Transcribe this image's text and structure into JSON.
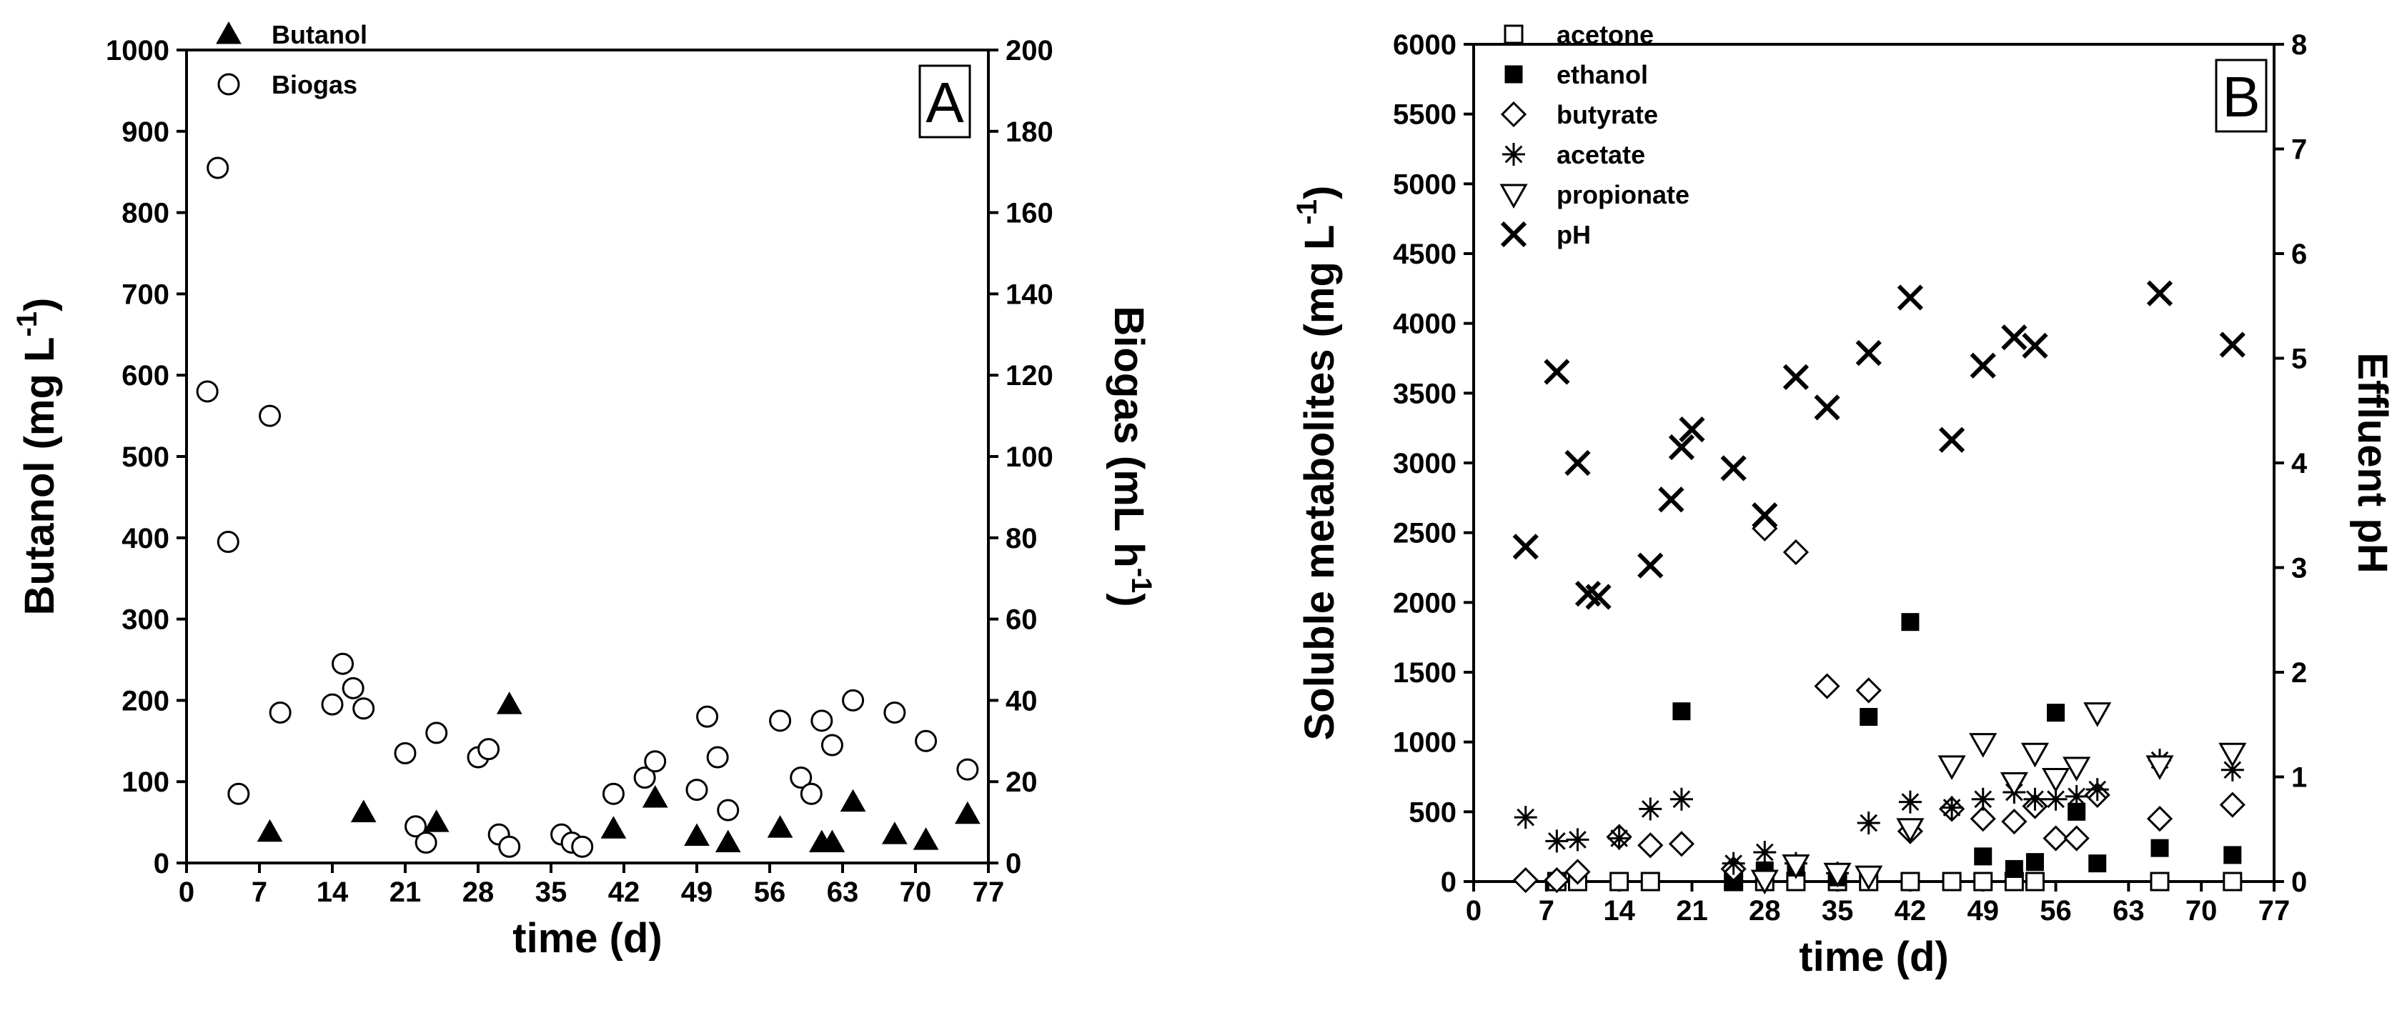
{
  "chart_data": [
    {
      "panel": "A",
      "type": "scatter",
      "xlabel": "time (d)",
      "ylabel": "Butanol (mg L-1)",
      "ylabel_text": "Butanol (mg L",
      "ylabel_sup": "-1",
      "ylabel_close": ")",
      "y2label": "Biogas (mL h-1)",
      "y2label_text": "Biogas (mL h",
      "y2label_sup": "-1",
      "y2label_close": ")",
      "xlim": [
        0,
        77
      ],
      "ylim": [
        0,
        1000
      ],
      "y2lim": [
        0,
        200
      ],
      "xticks": [
        0,
        7,
        14,
        21,
        28,
        35,
        42,
        49,
        56,
        63,
        70,
        77
      ],
      "yticks": [
        0,
        100,
        200,
        300,
        400,
        500,
        600,
        700,
        800,
        900,
        1000
      ],
      "y2ticks": [
        0,
        20,
        40,
        60,
        80,
        100,
        120,
        140,
        160,
        180,
        200
      ],
      "legend_position": "top-left",
      "series": [
        {
          "name": "Butanol",
          "marker": "filled-triangle",
          "axis": "left",
          "points": [
            [
              8,
              38
            ],
            [
              17,
              62
            ],
            [
              24,
              50
            ],
            [
              31,
              195
            ],
            [
              41,
              42
            ],
            [
              45,
              80
            ],
            [
              49,
              33
            ],
            [
              52,
              25
            ],
            [
              57,
              43
            ],
            [
              61,
              25
            ],
            [
              62,
              25
            ],
            [
              64,
              75
            ],
            [
              68,
              35
            ],
            [
              71,
              28
            ],
            [
              75,
              60
            ]
          ]
        },
        {
          "name": "Biogas",
          "marker": "open-circle",
          "axis": "right",
          "points": [
            [
              2,
              116
            ],
            [
              3,
              171
            ],
            [
              4,
              79
            ],
            [
              5,
              17
            ],
            [
              8,
              110
            ],
            [
              9,
              37
            ],
            [
              14,
              39
            ],
            [
              15,
              49
            ],
            [
              16,
              43
            ],
            [
              17,
              38
            ],
            [
              21,
              27
            ],
            [
              22,
              9
            ],
            [
              23,
              5
            ],
            [
              24,
              32
            ],
            [
              28,
              26
            ],
            [
              29,
              28
            ],
            [
              30,
              7
            ],
            [
              31,
              4
            ],
            [
              36,
              7
            ],
            [
              37,
              5
            ],
            [
              38,
              4
            ],
            [
              41,
              17
            ],
            [
              44,
              21
            ],
            [
              45,
              25
            ],
            [
              49,
              18
            ],
            [
              50,
              36
            ],
            [
              51,
              26
            ],
            [
              52,
              13
            ],
            [
              57,
              35
            ],
            [
              59,
              21
            ],
            [
              60,
              17
            ],
            [
              61,
              35
            ],
            [
              62,
              29
            ],
            [
              64,
              40
            ],
            [
              68,
              37
            ],
            [
              71,
              30
            ],
            [
              75,
              23
            ]
          ]
        }
      ]
    },
    {
      "panel": "B",
      "type": "scatter",
      "xlabel": "time (d)",
      "ylabel": "Soluble metabolites (mg L-1)",
      "ylabel_text": "Soluble metabolites (mg L",
      "ylabel_sup": "-1",
      "ylabel_close": ")",
      "y2label": "Effluent pH",
      "xlim": [
        0,
        77
      ],
      "ylim": [
        0,
        6000
      ],
      "y2lim": [
        0,
        8
      ],
      "xticks": [
        0,
        7,
        14,
        21,
        28,
        35,
        42,
        49,
        56,
        63,
        70,
        77
      ],
      "yticks": [
        0,
        500,
        1000,
        1500,
        2000,
        2500,
        3000,
        3500,
        4000,
        4500,
        5000,
        5500,
        6000
      ],
      "y2ticks": [
        0,
        1,
        2,
        3,
        4,
        5,
        6,
        7,
        8
      ],
      "legend_position": "top-left",
      "series": [
        {
          "name": "acetone",
          "marker": "open-square",
          "axis": "left",
          "points": [
            [
              8,
              0
            ],
            [
              10,
              0
            ],
            [
              14,
              0
            ],
            [
              17,
              0
            ],
            [
              25,
              0
            ],
            [
              28,
              0
            ],
            [
              31,
              0
            ],
            [
              35,
              0
            ],
            [
              38,
              0
            ],
            [
              42,
              0
            ],
            [
              46,
              0
            ],
            [
              49,
              0
            ],
            [
              52,
              0
            ],
            [
              54,
              0
            ],
            [
              66,
              0
            ],
            [
              73,
              0
            ]
          ]
        },
        {
          "name": "ethanol",
          "marker": "filled-square",
          "axis": "left",
          "points": [
            [
              20,
              1220
            ],
            [
              25,
              10
            ],
            [
              28,
              80
            ],
            [
              31,
              100
            ],
            [
              35,
              30
            ],
            [
              38,
              1180
            ],
            [
              42,
              1860
            ],
            [
              49,
              180
            ],
            [
              52,
              90
            ],
            [
              54,
              140
            ],
            [
              56,
              1210
            ],
            [
              58,
              500
            ],
            [
              60,
              130
            ],
            [
              66,
              240
            ],
            [
              73,
              190
            ]
          ]
        },
        {
          "name": "butyrate",
          "marker": "open-diamond",
          "axis": "left",
          "points": [
            [
              5,
              10
            ],
            [
              8,
              10
            ],
            [
              10,
              70
            ],
            [
              14,
              320
            ],
            [
              17,
              260
            ],
            [
              20,
              270
            ],
            [
              25,
              90
            ],
            [
              28,
              2530
            ],
            [
              31,
              2360
            ],
            [
              34,
              1400
            ],
            [
              38,
              1370
            ],
            [
              42,
              360
            ],
            [
              46,
              520
            ],
            [
              49,
              450
            ],
            [
              52,
              430
            ],
            [
              54,
              540
            ],
            [
              56,
              310
            ],
            [
              58,
              310
            ],
            [
              60,
              620
            ],
            [
              66,
              450
            ],
            [
              73,
              550
            ]
          ]
        },
        {
          "name": "acetate",
          "marker": "asterisk",
          "axis": "left",
          "points": [
            [
              5,
              460
            ],
            [
              8,
              290
            ],
            [
              10,
              300
            ],
            [
              14,
              310
            ],
            [
              17,
              520
            ],
            [
              20,
              590
            ],
            [
              25,
              130
            ],
            [
              28,
              210
            ],
            [
              31,
              130
            ],
            [
              35,
              60
            ],
            [
              38,
              420
            ],
            [
              42,
              570
            ],
            [
              46,
              530
            ],
            [
              49,
              590
            ],
            [
              52,
              640
            ],
            [
              54,
              590
            ],
            [
              56,
              590
            ],
            [
              58,
              610
            ],
            [
              60,
              660
            ],
            [
              66,
              870
            ],
            [
              73,
              800
            ]
          ]
        },
        {
          "name": "propionate",
          "marker": "open-triangle-down",
          "axis": "left",
          "points": [
            [
              28,
              10
            ],
            [
              31,
              120
            ],
            [
              35,
              60
            ],
            [
              38,
              40
            ],
            [
              42,
              380
            ],
            [
              46,
              830
            ],
            [
              49,
              990
            ],
            [
              52,
              710
            ],
            [
              54,
              920
            ],
            [
              56,
              740
            ],
            [
              58,
              820
            ],
            [
              60,
              1210
            ],
            [
              66,
              830
            ],
            [
              73,
              920
            ]
          ]
        },
        {
          "name": "pH",
          "marker": "x-cross",
          "axis": "right",
          "points": [
            [
              5,
              3.2
            ],
            [
              8,
              4.87
            ],
            [
              10,
              4.0
            ],
            [
              11,
              2.75
            ],
            [
              12,
              2.72
            ],
            [
              17,
              3.02
            ],
            [
              19,
              3.65
            ],
            [
              20,
              4.15
            ],
            [
              21,
              4.32
            ],
            [
              25,
              3.95
            ],
            [
              28,
              3.5
            ],
            [
              31,
              4.82
            ],
            [
              34,
              4.53
            ],
            [
              38,
              5.05
            ],
            [
              42,
              5.58
            ],
            [
              46,
              4.22
            ],
            [
              49,
              4.93
            ],
            [
              52,
              5.2
            ],
            [
              54,
              5.12
            ],
            [
              66,
              5.62
            ],
            [
              73,
              5.13
            ]
          ]
        }
      ]
    }
  ]
}
